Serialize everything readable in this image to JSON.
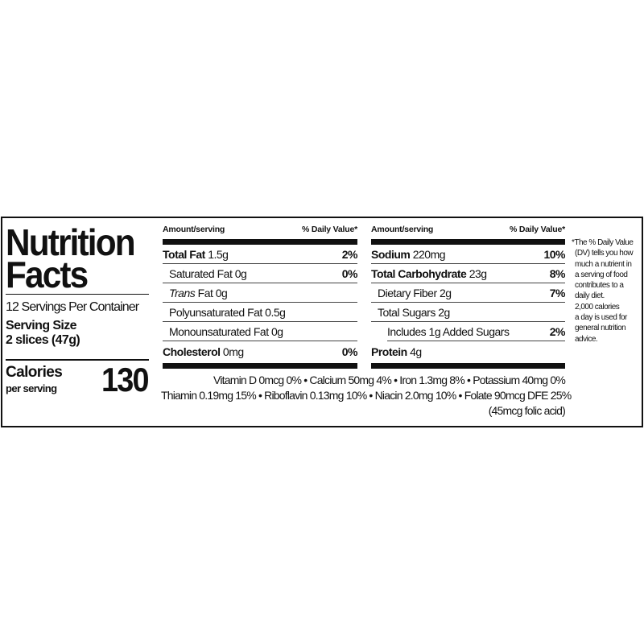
{
  "title_line1": "Nutrition",
  "title_line2": "Facts",
  "servings_per_container": "12 Servings Per Container",
  "serving_size_label": "Serving Size",
  "serving_size_value": "2 slices (47g)",
  "calories_label": "Calories",
  "calories_sublabel": "per serving",
  "calories_value": "130",
  "left_table": {
    "header_amount": "Amount/serving",
    "header_dv": "% Daily Value*",
    "rows": [
      {
        "name": "Total Fat",
        "amount": "1.5g",
        "dv": "2%",
        "bold": true
      },
      {
        "name": "Saturated Fat 0g",
        "amount": "",
        "dv": "0%",
        "bold": false
      },
      {
        "name": "Trans",
        "amount": "Fat 0g",
        "dv": "",
        "bold": false
      },
      {
        "name": "Polyunsaturated Fat 0.5g",
        "amount": "",
        "dv": "",
        "bold": false
      },
      {
        "name": "Monounsaturated Fat 0g",
        "amount": "",
        "dv": "",
        "bold": false
      },
      {
        "name": "Cholesterol",
        "amount": "0mg",
        "dv": "0%",
        "bold": true
      }
    ]
  },
  "right_table": {
    "header_amount": "Amount/serving",
    "header_dv": "% Daily Value*",
    "rows": [
      {
        "name": "Sodium",
        "amount": "220mg",
        "dv": "10%"
      },
      {
        "name": "Total Carbohydrate",
        "amount": "23g",
        "dv": "8%"
      },
      {
        "name": "Dietary Fiber 2g",
        "amount": "",
        "dv": "7%"
      },
      {
        "name": "Total Sugars 2g",
        "amount": "",
        "dv": ""
      },
      {
        "name": "Includes 1g Added Sugars",
        "amount": "",
        "dv": "2%"
      },
      {
        "name": "Protein",
        "amount": "4g",
        "dv": ""
      }
    ]
  },
  "vitamins": {
    "line1": "Vitamin D 0mcg 0% • Calcium 50mg 4% • Iron 1.3mg 8% • Potassium 40mg 0%",
    "line2": "Thiamin 0.19mg 15% • Riboflavin 0.13mg 10% • Niacin 2.0mg 10% • Folate 90mcg DFE 25%",
    "line3": "(45mcg folic acid)"
  },
  "footnote": [
    "*The % Daily Value",
    "(DV) tells you how",
    "much a nutrient in",
    "a serving of food",
    "contributes to a",
    "daily diet.",
    "2,000 calories",
    "a day is used for",
    "general nutrition",
    "advice."
  ]
}
